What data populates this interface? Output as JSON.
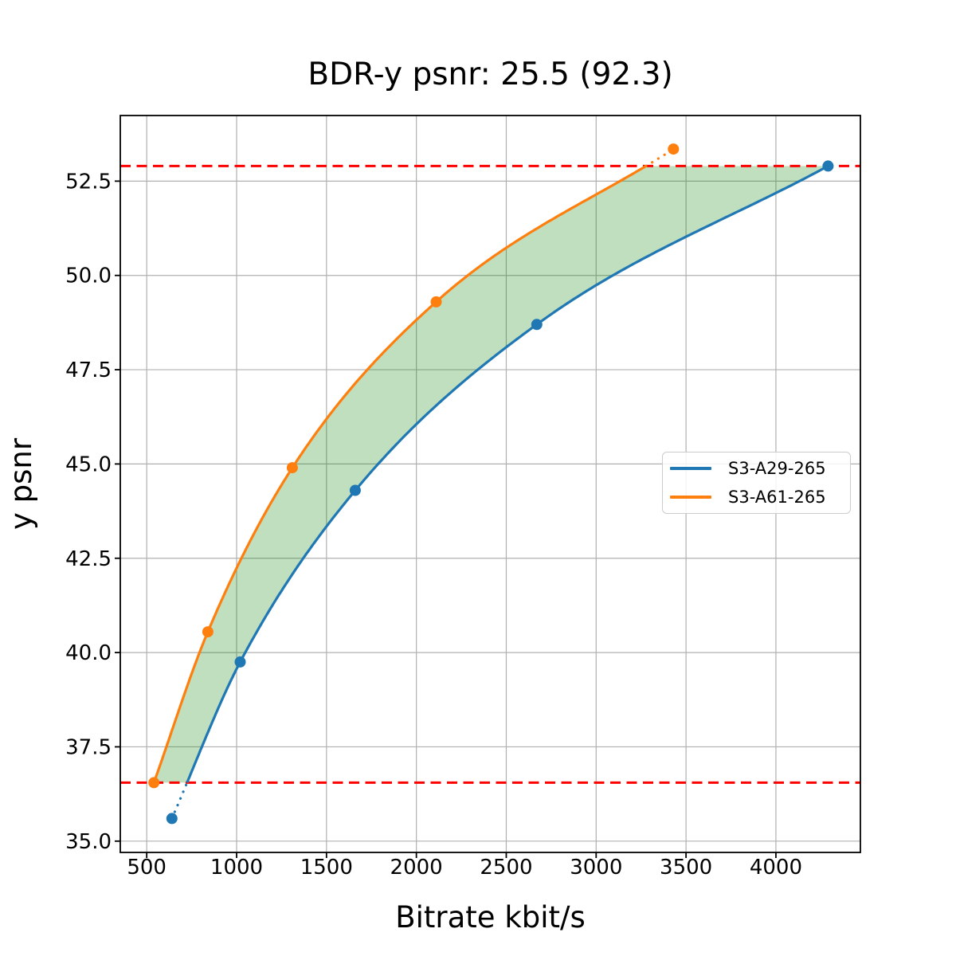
{
  "chart_data": {
    "type": "line",
    "title": "BDR-y psnr: 25.5 (92.3)",
    "xlabel": "Bitrate kbit/s",
    "ylabel": "y psnr",
    "xlim": [
      353,
      4470
    ],
    "ylim": [
      34.7,
      54.24
    ],
    "grid": true,
    "grid_color": "#b0b0b0",
    "x_ticks": [
      {
        "v": 500,
        "label": "500"
      },
      {
        "v": 1000,
        "label": "1000"
      },
      {
        "v": 1500,
        "label": "1500"
      },
      {
        "v": 2000,
        "label": "2000"
      },
      {
        "v": 2500,
        "label": "2500"
      },
      {
        "v": 3000,
        "label": "3000"
      },
      {
        "v": 3500,
        "label": "3500"
      },
      {
        "v": 4000,
        "label": "4000"
      }
    ],
    "y_ticks": [
      {
        "v": 35.0,
        "label": "35.0"
      },
      {
        "v": 37.5,
        "label": "37.5"
      },
      {
        "v": 40.0,
        "label": "40.0"
      },
      {
        "v": 42.5,
        "label": "42.5"
      },
      {
        "v": 45.0,
        "label": "45.0"
      },
      {
        "v": 47.5,
        "label": "47.5"
      },
      {
        "v": 50.0,
        "label": "50.0"
      },
      {
        "v": 52.5,
        "label": "52.5"
      }
    ],
    "series": [
      {
        "name": "S3-A29-265",
        "color": "#1f77b4",
        "points": [
          [
            640,
            35.6
          ],
          [
            1020,
            39.75
          ],
          [
            1660,
            44.3
          ],
          [
            2670,
            48.7
          ],
          [
            4290,
            52.9
          ]
        ]
      },
      {
        "name": "S3-A61-265",
        "color": "#ff7f0e",
        "points": [
          [
            540,
            36.55
          ],
          [
            840,
            40.55
          ],
          [
            1310,
            44.9
          ],
          [
            2110,
            49.3
          ],
          [
            3430,
            53.35
          ]
        ]
      }
    ],
    "overlap_lines": {
      "lower": 36.55,
      "upper": 52.9,
      "color": "#ff0000",
      "style": "dashed"
    },
    "fill_between": {
      "color": "#008000",
      "opacity": 0.25
    },
    "legend": {
      "location": "center right"
    }
  }
}
